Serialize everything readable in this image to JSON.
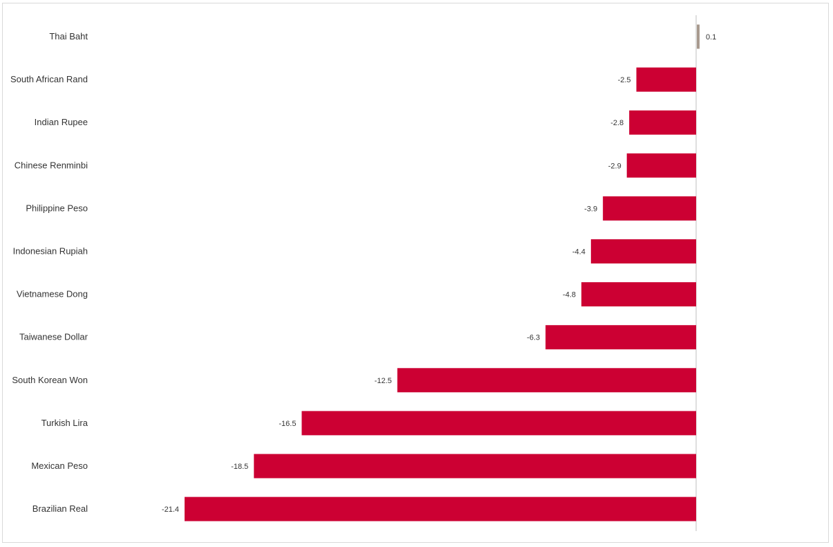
{
  "chart_data": {
    "type": "bar",
    "orientation": "horizontal",
    "categories": [
      "Thai Baht",
      "South African Rand",
      "Indian Rupee",
      "Chinese Renminbi",
      "Philippine Peso",
      "Indonesian Rupiah",
      "Vietnamese Dong",
      "Taiwanese Dollar",
      "South Korean Won",
      "Turkish Lira",
      "Mexican Peso",
      "Brazilian Real"
    ],
    "values": [
      0.1,
      -2.5,
      -2.8,
      -2.9,
      -3.9,
      -4.4,
      -4.8,
      -6.3,
      -12.5,
      -16.5,
      -18.5,
      -21.4
    ],
    "value_labels": [
      "0.1",
      "-2.5",
      "-2.8",
      "-2.9",
      "-3.9",
      "-4.4",
      "-4.8",
      "-6.3",
      "-12.5",
      "-16.5",
      "-18.5",
      "-21.4"
    ],
    "title": "",
    "xlabel": "",
    "ylabel": "",
    "xlim": [
      -21.4,
      0.1
    ],
    "grid": false,
    "legend": "none",
    "colors": {
      "negative": "#cc0033",
      "positive": "#a89a8e",
      "axis": "#bfbfbf"
    }
  }
}
